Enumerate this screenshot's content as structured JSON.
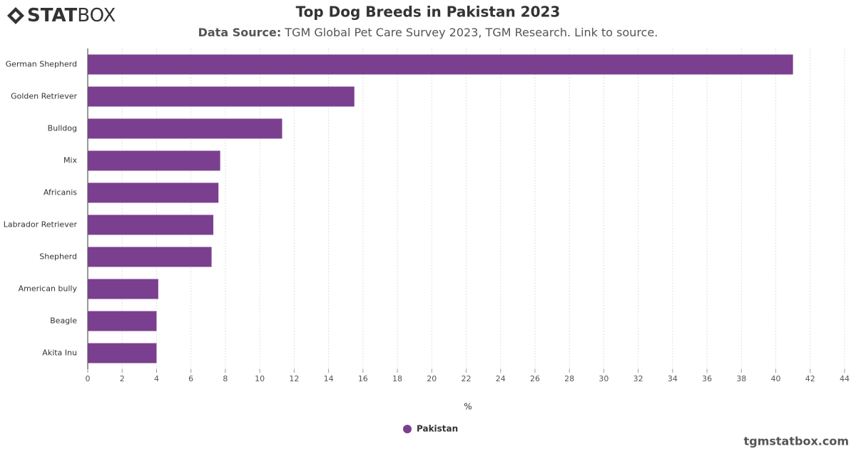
{
  "logo": {
    "bold": "STAT",
    "light": "BOX"
  },
  "footer": "tgmstatbox.com",
  "chart_data": {
    "type": "bar",
    "orientation": "horizontal",
    "title": "Top Dog Breeds in Pakistan 2023",
    "subtitle_label": "Data Source:",
    "subtitle": "TGM Global Pet Care Survey 2023, TGM Research. Link to source.",
    "categories": [
      "German Shepherd",
      "Golden Retriever",
      "Bulldog",
      "Mix",
      "Africanis",
      "Labrador Retriever",
      "Shepherd",
      "American bully",
      "Beagle",
      "Akita Inu"
    ],
    "series": [
      {
        "name": "Pakistan",
        "color": "#7b3f8f",
        "values": [
          41,
          15.5,
          11.3,
          7.7,
          7.6,
          7.3,
          7.2,
          4.1,
          4.0,
          4.0
        ]
      }
    ],
    "xlabel": "%",
    "xlim": [
      0,
      44
    ],
    "xticks": [
      0,
      2,
      4,
      6,
      8,
      10,
      12,
      14,
      16,
      18,
      20,
      22,
      24,
      26,
      28,
      30,
      32,
      34,
      36,
      38,
      40,
      42,
      44
    ],
    "grid": true,
    "legend": "bottom"
  }
}
